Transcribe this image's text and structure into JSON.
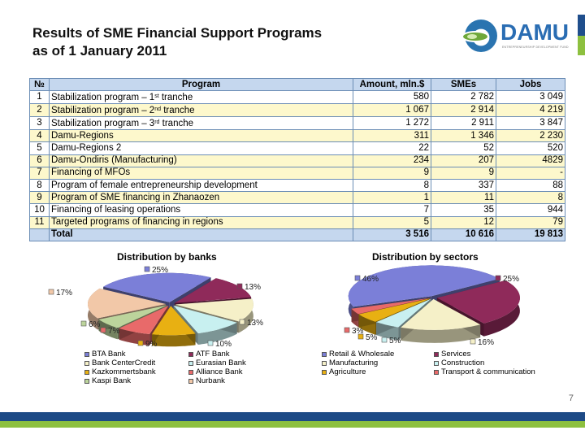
{
  "header": {
    "title_line1": "Results of SME Financial Support Programs",
    "title_line2": "as of 1 January 2011"
  },
  "logo": {
    "word": "DAMU",
    "tagline": "ENTREPRENEURSHIP DEVELOPMENT FUND",
    "colors": {
      "blue": "#2a6db3",
      "green": "#8dc03f",
      "dark_blue": "#1f4e8c"
    }
  },
  "table": {
    "headers": {
      "no": "№",
      "program": "Program",
      "amount": "Amount, mln.$",
      "smes": "SMEs",
      "jobs": "Jobs"
    },
    "rows": [
      {
        "no": "1",
        "program": "Stabilization program – 1",
        "sup": "st",
        "suffix": " tranche",
        "amount": "580",
        "smes": "2 782",
        "jobs": "3 049",
        "shade": "white"
      },
      {
        "no": "2",
        "program": "Stabilization program – 2",
        "sup": "nd",
        "suffix": " tranche",
        "amount": "1 067",
        "smes": "2 914",
        "jobs": "4 219",
        "shade": "yellow"
      },
      {
        "no": "3",
        "program": "Stabilization program – 3",
        "sup": "rd",
        "suffix": " tranche",
        "amount": "1 272",
        "smes": "2 911",
        "jobs": "3 847",
        "shade": "white"
      },
      {
        "no": "4",
        "program": "Damu-Regions",
        "amount": "311",
        "smes": "1 346",
        "jobs": "2 230",
        "shade": "yellow"
      },
      {
        "no": "5",
        "program": "Damu-Regions 2",
        "amount": "22",
        "smes": "52",
        "jobs": "520",
        "shade": "white"
      },
      {
        "no": "6",
        "program": "Damu-Ondiris (Manufacturing)",
        "amount": "234",
        "smes": "207",
        "jobs": "4829",
        "shade": "yellow"
      },
      {
        "no": "7",
        "program": "Financing of MFOs",
        "amount": "9",
        "smes": "9",
        "jobs": "-",
        "shade": "yellow"
      },
      {
        "no": "8",
        "program": "Program of female entrepreneurship development",
        "amount": "8",
        "smes": "337",
        "jobs": "88",
        "shade": "white"
      },
      {
        "no": "9",
        "program": "Program of SME financing in Zhanaozen",
        "amount": "1",
        "smes": "11",
        "jobs": "8",
        "shade": "yellow"
      },
      {
        "no": "10",
        "program": "Financing of leasing operations",
        "amount": "7",
        "smes": "35",
        "jobs": "944",
        "shade": "white"
      },
      {
        "no": "11",
        "program": "Targeted programs of financing in regions",
        "amount": "5",
        "smes": "12",
        "jobs": "79",
        "shade": "yellow"
      }
    ],
    "total": {
      "label": "Total",
      "amount": "3 516",
      "smes": "10 616",
      "jobs": "19 813"
    }
  },
  "chart_data": [
    {
      "type": "pie",
      "title": "Distribution by banks",
      "categories": [
        "BTA Bank",
        "ATF Bank",
        "Bank CenterCredit",
        "Eurasian Bank",
        "Kazkommertsbank",
        "Alliance Bank",
        "Kaspi Bank",
        "Nurbank"
      ],
      "values": [
        25,
        13,
        13,
        10,
        9,
        7,
        6,
        17
      ],
      "labels": [
        "25%",
        "13%",
        "13%",
        "10%",
        "9%",
        "7%",
        "6%",
        "17%"
      ],
      "colors": [
        "#7b7fd8",
        "#8f2a5a",
        "#f5f0c8",
        "#c8f0f0",
        "#e8b012",
        "#e86a6a",
        "#bcd49c",
        "#f2c8a8"
      ],
      "legend_order": [
        "BTA Bank",
        "ATF Bank",
        "Bank CenterCredit",
        "Eurasian Bank",
        "Kazkommertsbank",
        "Alliance Bank",
        "Kaspi Bank",
        "Nurbank"
      ],
      "legend_position": "bottom",
      "style": "3d-exploded"
    },
    {
      "type": "pie",
      "title": "Distribution by sectors",
      "categories": [
        "Retail & Wholesale",
        "Services",
        "Manufacturing",
        "Construction",
        "Agriculture",
        "Transport & communication"
      ],
      "values": [
        46,
        25,
        16,
        5,
        5,
        3
      ],
      "labels": [
        "46%",
        "25%",
        "16%",
        "5%",
        "5%",
        "3%"
      ],
      "colors": [
        "#7b7fd8",
        "#8f2a5a",
        "#f5f0c8",
        "#c8f0f0",
        "#e8b012",
        "#e86a6a"
      ],
      "legend_order": [
        "Retail & Wholesale",
        "Services",
        "Manufacturing",
        "Construction",
        "Agriculture",
        "Transport & communication"
      ],
      "legend_position": "bottom",
      "style": "3d-exploded"
    }
  ],
  "footer": {
    "page_number": "7"
  }
}
